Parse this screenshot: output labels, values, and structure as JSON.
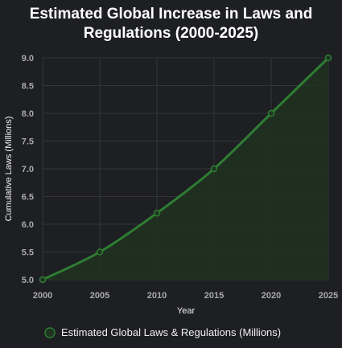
{
  "chart_data": {
    "type": "area",
    "title_lines": [
      "Estimated Global Increase in Laws and",
      "Regulations (2000-2025)"
    ],
    "xlabel": "Year",
    "ylabel": "Cumulative Laws (Millions)",
    "x": [
      2000,
      2005,
      2010,
      2015,
      2020,
      2025
    ],
    "series": [
      {
        "name": "Estimated Global Laws & Regulations (Millions)",
        "values": [
          5.0,
          5.5,
          6.2,
          7.0,
          8.0,
          9.0
        ]
      }
    ],
    "xlim": [
      2000,
      2025
    ],
    "ylim": [
      5.0,
      9.0
    ],
    "y_ticks": [
      "5.0",
      "5.5",
      "6.0",
      "6.5",
      "7.0",
      "7.5",
      "8.0",
      "8.5",
      "9.0"
    ],
    "x_ticks": [
      "2000",
      "2005",
      "2010",
      "2015",
      "2020",
      "2025"
    ],
    "grid": true,
    "legend_position": "bottom",
    "colors": {
      "line": "#2e7d32",
      "fill": "#1f3320",
      "grid": "#33353a",
      "background": "#1e1f23"
    }
  }
}
